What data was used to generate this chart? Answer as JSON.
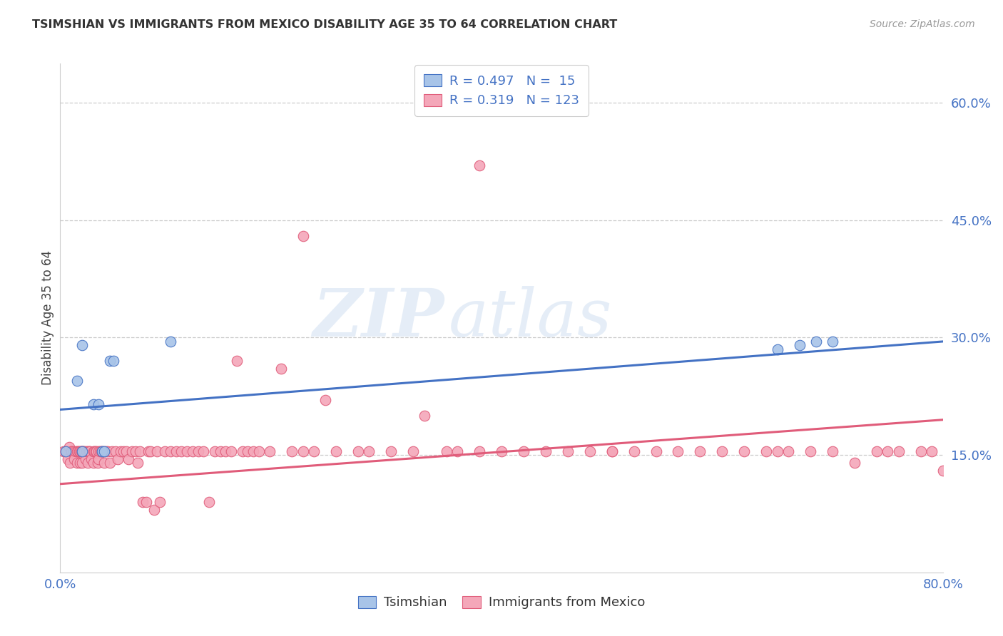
{
  "title": "TSIMSHIAN VS IMMIGRANTS FROM MEXICO DISABILITY AGE 35 TO 64 CORRELATION CHART",
  "source": "Source: ZipAtlas.com",
  "ylabel": "Disability Age 35 to 64",
  "xmin": 0.0,
  "xmax": 0.8,
  "ymin": 0.0,
  "ymax": 0.65,
  "grid_color": "#cccccc",
  "background_color": "#ffffff",
  "tsimshian_color": "#a8c4e8",
  "tsimshian_line_color": "#4472c4",
  "mexico_color": "#f4a7b9",
  "mexico_line_color": "#e05c7a",
  "R_tsimshian": 0.497,
  "N_tsimshian": 15,
  "R_mexico": 0.319,
  "N_mexico": 123,
  "legend_label_1": "Tsimshian",
  "legend_label_2": "Immigrants from Mexico",
  "watermark_zip": "ZIP",
  "watermark_atlas": "atlas",
  "tsimshian_x": [
    0.005,
    0.015,
    0.02,
    0.02,
    0.03,
    0.035,
    0.038,
    0.04,
    0.045,
    0.048,
    0.1,
    0.65,
    0.67,
    0.685,
    0.7
  ],
  "tsimshian_y": [
    0.155,
    0.245,
    0.29,
    0.155,
    0.215,
    0.215,
    0.155,
    0.155,
    0.27,
    0.27,
    0.295,
    0.285,
    0.29,
    0.295,
    0.295
  ],
  "tsim_line_x": [
    0.0,
    0.8
  ],
  "tsim_line_y": [
    0.208,
    0.295
  ],
  "mex_line_x": [
    0.0,
    0.8
  ],
  "mex_line_y": [
    0.113,
    0.195
  ],
  "mexico_x": [
    0.003,
    0.005,
    0.007,
    0.008,
    0.009,
    0.01,
    0.01,
    0.012,
    0.013,
    0.014,
    0.015,
    0.015,
    0.016,
    0.017,
    0.018,
    0.018,
    0.019,
    0.02,
    0.02,
    0.02,
    0.021,
    0.022,
    0.023,
    0.024,
    0.025,
    0.025,
    0.026,
    0.027,
    0.028,
    0.03,
    0.03,
    0.031,
    0.032,
    0.033,
    0.034,
    0.035,
    0.035,
    0.036,
    0.037,
    0.038,
    0.04,
    0.04,
    0.042,
    0.043,
    0.045,
    0.047,
    0.05,
    0.052,
    0.055,
    0.057,
    0.06,
    0.062,
    0.065,
    0.068,
    0.07,
    0.072,
    0.075,
    0.078,
    0.08,
    0.082,
    0.085,
    0.088,
    0.09,
    0.095,
    0.1,
    0.105,
    0.11,
    0.115,
    0.12,
    0.125,
    0.13,
    0.135,
    0.14,
    0.145,
    0.15,
    0.155,
    0.16,
    0.165,
    0.17,
    0.175,
    0.18,
    0.19,
    0.2,
    0.21,
    0.22,
    0.23,
    0.24,
    0.25,
    0.27,
    0.28,
    0.3,
    0.32,
    0.33,
    0.35,
    0.36,
    0.38,
    0.4,
    0.42,
    0.44,
    0.46,
    0.48,
    0.5,
    0.52,
    0.54,
    0.56,
    0.58,
    0.6,
    0.62,
    0.64,
    0.65,
    0.66,
    0.68,
    0.7,
    0.72,
    0.74,
    0.75,
    0.76,
    0.78,
    0.79,
    0.8,
    0.22,
    0.38,
    0.5
  ],
  "mexico_y": [
    0.155,
    0.155,
    0.145,
    0.16,
    0.14,
    0.155,
    0.155,
    0.155,
    0.145,
    0.155,
    0.155,
    0.14,
    0.155,
    0.155,
    0.155,
    0.14,
    0.155,
    0.155,
    0.155,
    0.14,
    0.155,
    0.155,
    0.145,
    0.155,
    0.155,
    0.14,
    0.155,
    0.155,
    0.145,
    0.155,
    0.14,
    0.155,
    0.155,
    0.155,
    0.14,
    0.155,
    0.145,
    0.155,
    0.155,
    0.155,
    0.155,
    0.14,
    0.155,
    0.155,
    0.14,
    0.155,
    0.155,
    0.145,
    0.155,
    0.155,
    0.155,
    0.145,
    0.155,
    0.155,
    0.14,
    0.155,
    0.09,
    0.09,
    0.155,
    0.155,
    0.08,
    0.155,
    0.09,
    0.155,
    0.155,
    0.155,
    0.155,
    0.155,
    0.155,
    0.155,
    0.155,
    0.09,
    0.155,
    0.155,
    0.155,
    0.155,
    0.27,
    0.155,
    0.155,
    0.155,
    0.155,
    0.155,
    0.26,
    0.155,
    0.155,
    0.155,
    0.22,
    0.155,
    0.155,
    0.155,
    0.155,
    0.155,
    0.2,
    0.155,
    0.155,
    0.155,
    0.155,
    0.155,
    0.155,
    0.155,
    0.155,
    0.155,
    0.155,
    0.155,
    0.155,
    0.155,
    0.155,
    0.155,
    0.155,
    0.155,
    0.155,
    0.155,
    0.155,
    0.14,
    0.155,
    0.155,
    0.155,
    0.155,
    0.155,
    0.13,
    0.43,
    0.52,
    0.155
  ]
}
